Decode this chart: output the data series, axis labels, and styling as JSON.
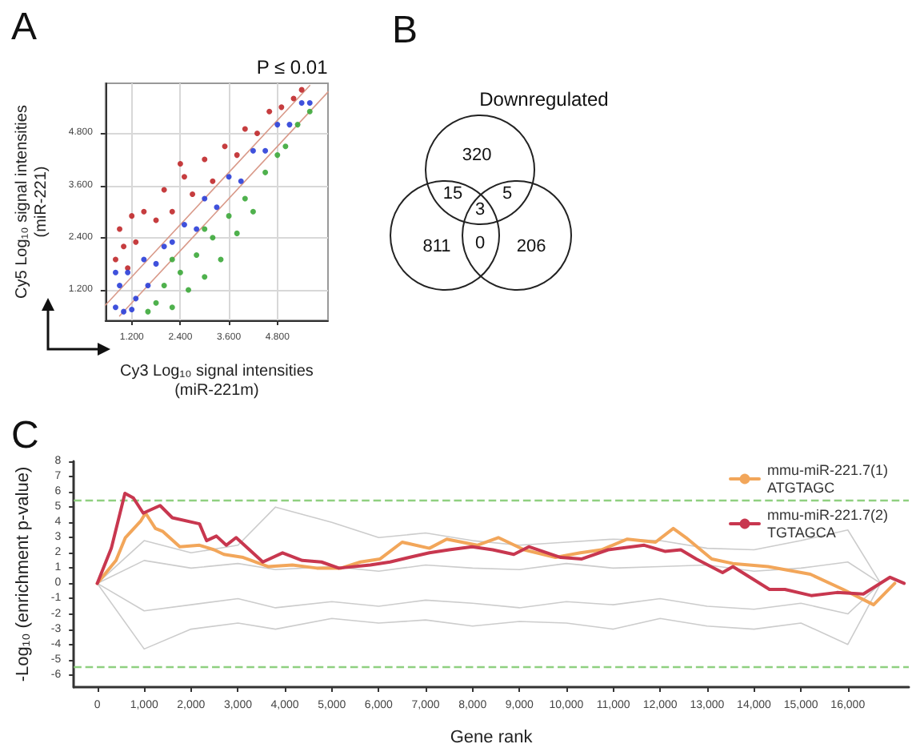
{
  "chart_data": [
    {
      "type": "scatter",
      "title": "A",
      "xlabel": "Cy3 Log₁₀ signal intensities\n(miR-221m)",
      "ylabel": "Cy5 Log₁₀ signal intensities\n(miR-221)",
      "annotations": [
        "P ≤ 0.01"
      ],
      "xlim": [
        0.55,
        6.05
      ],
      "ylim": [
        0.5,
        5.95
      ],
      "xticks": [
        {
          "value": 1.2,
          "label": "1.200"
        },
        {
          "value": 2.4,
          "label": "2.400"
        },
        {
          "value": 3.6,
          "label": "3.600"
        },
        {
          "value": 4.8,
          "label": "4.800"
        }
      ],
      "yticks": [
        {
          "value": 1.2,
          "label": "1.200"
        },
        {
          "value": 2.4,
          "label": "2.400"
        },
        {
          "value": 3.6,
          "label": "3.600"
        },
        {
          "value": 4.8,
          "label": "4.800"
        }
      ],
      "grid": true,
      "legend": false,
      "marker": "circle",
      "series": [
        {
          "type": "line",
          "marker": "none",
          "color": "#d99a8a",
          "x": [
            0.55,
            5.6
          ],
          "values": [
            0.85,
            5.9
          ]
        },
        {
          "type": "line",
          "marker": "none",
          "color": "#d99a8a",
          "x": [
            0.9,
            6.05
          ],
          "values": [
            0.6,
            5.75
          ]
        },
        {
          "color": "#c0282a",
          "x": [
            0.8,
            0.9,
            1.0,
            1.2,
            1.3,
            1.5,
            1.8,
            2.0,
            2.2,
            2.5,
            2.7,
            3.0,
            3.2,
            3.5,
            3.8,
            4.0,
            4.3,
            4.6,
            4.9,
            5.2,
            5.4,
            1.1,
            2.4
          ],
          "values": [
            1.9,
            2.6,
            2.2,
            2.9,
            2.3,
            3.0,
            2.8,
            3.5,
            3.0,
            3.8,
            3.4,
            4.2,
            3.7,
            4.5,
            4.3,
            4.9,
            4.8,
            5.3,
            5.4,
            5.6,
            5.8,
            1.7,
            4.1
          ]
        },
        {
          "color": "#2a3ed8",
          "x": [
            0.8,
            0.9,
            1.0,
            1.1,
            1.3,
            1.5,
            1.6,
            1.8,
            2.0,
            2.2,
            2.5,
            2.8,
            3.0,
            3.3,
            3.6,
            3.9,
            4.2,
            4.5,
            4.8,
            5.1,
            5.4,
            5.6,
            0.8,
            1.2
          ],
          "values": [
            0.8,
            1.3,
            0.7,
            1.6,
            1.0,
            1.9,
            1.3,
            1.8,
            2.2,
            2.3,
            2.7,
            2.6,
            3.3,
            3.1,
            3.8,
            3.7,
            4.4,
            4.4,
            5.0,
            5.0,
            5.5,
            5.5,
            1.6,
            0.75
          ]
        },
        {
          "color": "#3ca83a",
          "x": [
            1.6,
            1.8,
            2.0,
            2.2,
            2.4,
            2.6,
            2.8,
            3.0,
            3.2,
            3.4,
            3.6,
            3.8,
            4.0,
            4.2,
            4.5,
            4.8,
            5.0,
            5.3,
            5.6,
            2.2,
            3.0
          ],
          "values": [
            0.7,
            0.9,
            1.3,
            0.8,
            1.6,
            1.2,
            2.0,
            1.5,
            2.4,
            1.9,
            2.9,
            2.5,
            3.3,
            3.0,
            3.9,
            4.3,
            4.5,
            5.0,
            5.3,
            1.9,
            2.6
          ]
        }
      ]
    },
    {
      "type": "other",
      "title": "B",
      "categories": [
        "Downregulated",
        null,
        null
      ],
      "annotations": [
        "320",
        "15",
        "5",
        "3",
        "811",
        "0",
        "206"
      ]
    },
    {
      "type": "line",
      "title": "C",
      "xlabel": "Gene rank",
      "ylabel": "-Log₁₀ (enrichment p-value)",
      "xlim": [
        -500,
        17300
      ],
      "ylim": [
        -6.8,
        8
      ],
      "xticks": [
        0,
        {
          "value": 1000,
          "label": "1,000"
        },
        {
          "value": 2000,
          "label": "2,000"
        },
        {
          "value": 3000,
          "label": "3,000"
        },
        {
          "value": 4000,
          "label": "4,000"
        },
        {
          "value": 5000,
          "label": "5,000"
        },
        {
          "value": 6000,
          "label": "6,000"
        },
        {
          "value": 7000,
          "label": "7,000"
        },
        {
          "value": 8000,
          "label": "8,000"
        },
        {
          "value": 9000,
          "label": "9,000"
        },
        {
          "value": 10000,
          "label": "10,000"
        },
        {
          "value": 11000,
          "label": "11,000"
        },
        {
          "value": 12000,
          "label": "12,000"
        },
        {
          "value": 13000,
          "label": "13,000"
        },
        {
          "value": 14000,
          "label": "14,000"
        },
        {
          "value": 15000,
          "label": "15,000"
        },
        {
          "value": 16000,
          "label": "16,000"
        }
      ],
      "yticks": [
        -6,
        -5,
        -4,
        -3,
        -2,
        -1,
        0,
        1,
        2,
        3,
        4,
        5,
        6,
        7,
        8
      ],
      "grid": false,
      "legend": "top right",
      "marker": "none",
      "line_style": "solid",
      "ref_lines": [
        {
          "axis": "y",
          "value": 5.45,
          "label": null,
          "color": "#8fd080",
          "line_style": "dashed"
        },
        {
          "axis": "y",
          "value": -5.5,
          "label": null,
          "color": "#8fd080",
          "line_style": "dashed"
        }
      ],
      "x": [
        0,
        1000,
        2000,
        3000,
        3800,
        5000,
        6000,
        7000,
        8000,
        9000,
        10000,
        11000,
        12000,
        13000,
        14000,
        15000,
        16000,
        16700
      ],
      "series": [
        {
          "color": "#cccccc",
          "values": [
            0,
            2.8,
            2.0,
            2.5,
            5.0,
            4.0,
            3.0,
            3.3,
            2.8,
            2.5,
            2.7,
            2.9,
            2.8,
            2.3,
            2.2,
            2.8,
            3.5,
            0
          ]
        },
        {
          "color": "#cccccc",
          "values": [
            0,
            -4.3,
            -3.0,
            -2.6,
            -3.0,
            -2.3,
            -2.6,
            -2.4,
            -2.8,
            -2.5,
            -2.6,
            -3.0,
            -2.3,
            -2.8,
            -3.0,
            -2.6,
            -4.0,
            0
          ]
        },
        {
          "color": "#cccccc",
          "values": [
            0,
            1.5,
            1.0,
            1.3,
            0.9,
            1.1,
            0.8,
            1.2,
            1.0,
            0.9,
            1.3,
            1.0,
            1.1,
            1.2,
            0.8,
            1.0,
            1.4,
            0
          ]
        },
        {
          "color": "#cccccc",
          "values": [
            0,
            -1.8,
            -1.4,
            -1.0,
            -1.6,
            -1.2,
            -1.5,
            -1.1,
            -1.3,
            -1.6,
            -1.2,
            -1.4,
            -1.0,
            -1.5,
            -1.7,
            -1.3,
            -2.0,
            0
          ]
        },
        {
          "name": "mmu-miR-221.7(1)\nATGTAGC",
          "color": "#f2a65a",
          "x": [
            0,
            400,
            600,
            930,
            1030,
            1240,
            1400,
            1760,
            2180,
            2490,
            2700,
            3110,
            3640,
            4160,
            4680,
            5200,
            5610,
            6030,
            6500,
            7080,
            7450,
            8100,
            8550,
            9100,
            9770,
            10300,
            10750,
            11300,
            11900,
            12280,
            12550,
            13100,
            13550,
            14300,
            15200,
            15900,
            16550,
            17000
          ],
          "values": [
            0,
            1.5,
            3.0,
            4.1,
            4.6,
            3.6,
            3.4,
            2.4,
            2.5,
            2.2,
            1.9,
            1.7,
            1.1,
            1.2,
            1.0,
            1.0,
            1.4,
            1.6,
            2.7,
            2.3,
            2.9,
            2.5,
            3.0,
            2.2,
            1.7,
            2.0,
            2.2,
            2.9,
            2.7,
            3.6,
            3.0,
            1.6,
            1.3,
            1.1,
            0.6,
            -0.4,
            -1.4,
            0
          ]
        },
        {
          "name": "mmu-miR-221.7(2)\nTGTAGCA",
          "color": "#c8374f",
          "x": [
            0,
            300,
            590,
            770,
            980,
            1340,
            1600,
            2180,
            2330,
            2540,
            2750,
            2960,
            3530,
            3950,
            4370,
            4780,
            5150,
            5820,
            6240,
            6650,
            7080,
            7500,
            7990,
            8430,
            8880,
            9200,
            9880,
            10330,
            10890,
            11660,
            12100,
            12440,
            12770,
            13330,
            13550,
            14330,
            14660,
            15220,
            15770,
            16330,
            16900,
            17200
          ],
          "values": [
            0,
            2.3,
            5.9,
            5.6,
            4.6,
            5.1,
            4.3,
            3.9,
            2.8,
            3.1,
            2.5,
            3.0,
            1.4,
            2.0,
            1.5,
            1.4,
            1.0,
            1.2,
            1.4,
            1.7,
            2.0,
            2.2,
            2.4,
            2.2,
            1.9,
            2.4,
            1.7,
            1.6,
            2.2,
            2.5,
            2.1,
            2.2,
            1.6,
            0.7,
            1.1,
            -0.4,
            -0.4,
            -0.8,
            -0.6,
            -0.7,
            0.4,
            0
          ]
        }
      ]
    }
  ]
}
